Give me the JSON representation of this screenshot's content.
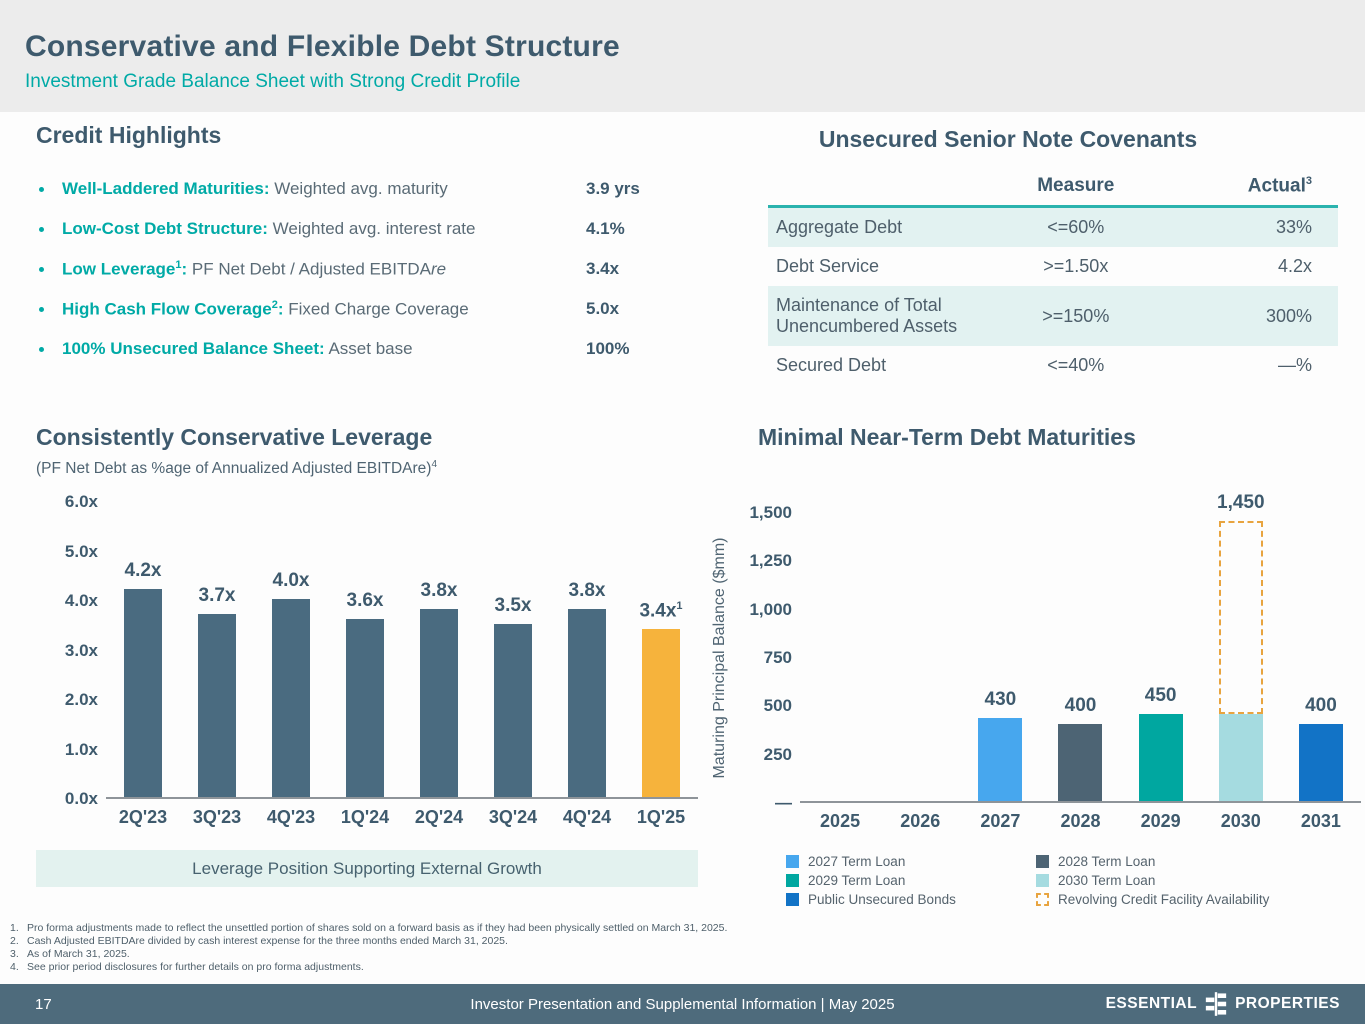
{
  "header": {
    "title": "Conservative and Flexible Debt Structure",
    "subtitle": "Investment Grade Balance Sheet with Strong Credit Profile"
  },
  "credit_highlights": {
    "heading": "Credit Highlights",
    "bullets": [
      {
        "label": "Well-Laddered Maturities",
        "sup": "",
        "rest": " Weighted avg. maturity",
        "rest_italic": "",
        "value": "3.9 yrs"
      },
      {
        "label": "Low-Cost Debt Structure",
        "sup": "",
        "rest": " Weighted avg. interest rate",
        "rest_italic": "",
        "value": "4.1%"
      },
      {
        "label": "Low Leverage",
        "sup": "1",
        "rest": " PF Net Debt / Adjusted EBITDA",
        "rest_italic": "re",
        "value": "3.4x"
      },
      {
        "label": "High Cash Flow Coverage",
        "sup": "2",
        "rest": " Fixed Charge Coverage",
        "rest_italic": "",
        "value": "5.0x"
      },
      {
        "label": "100% Unsecured Balance Sheet",
        "sup": "",
        "rest": " Asset base",
        "rest_italic": "",
        "value": "100%"
      }
    ]
  },
  "covenants": {
    "heading": "Unsecured Senior Note Covenants",
    "columns": {
      "measure": "Measure",
      "actual": "Actual",
      "actual_sup": "3"
    },
    "rows": [
      {
        "name": "Aggregate Debt",
        "measure": "<=60%",
        "actual": "33%",
        "shaded": true
      },
      {
        "name": "Debt Service",
        "measure": ">=1.50x",
        "actual": "4.2x",
        "shaded": false
      },
      {
        "name": "Maintenance of Total Unencumbered Assets",
        "measure": ">=150%",
        "actual": "300%",
        "shaded": true
      },
      {
        "name": "Secured Debt",
        "measure": "<=40%",
        "actual": "—%",
        "shaded": false
      }
    ]
  },
  "chart_data": [
    {
      "name": "leverage",
      "type": "bar",
      "title": "Consistently Conservative Leverage",
      "subtitle": "(PF Net Debt as %age of Annualized Adjusted EBITDAre)",
      "subtitle_sup": "4",
      "ylim": [
        0,
        6
      ],
      "yticks": [
        "6.0x",
        "5.0x",
        "4.0x",
        "3.0x",
        "2.0x",
        "1.0x",
        "0.0x"
      ],
      "categories": [
        "2Q'23",
        "3Q'23",
        "4Q'23",
        "1Q'24",
        "2Q'24",
        "3Q'24",
        "4Q'24",
        "1Q'25"
      ],
      "values": [
        4.2,
        3.7,
        4.0,
        3.6,
        3.8,
        3.5,
        3.8,
        3.4
      ],
      "value_labels": [
        "4.2x",
        "3.7x",
        "4.0x",
        "3.6x",
        "3.8x",
        "3.5x",
        "3.8x",
        "3.4x"
      ],
      "value_label_sups": [
        "",
        "",
        "",
        "",
        "",
        "",
        "",
        "1"
      ],
      "bar_colors": [
        "#4a6b80",
        "#4a6b80",
        "#4a6b80",
        "#4a6b80",
        "#4a6b80",
        "#4a6b80",
        "#4a6b80",
        "#f6b33c"
      ],
      "grid": false,
      "caption": "Leverage Position Supporting External Growth"
    },
    {
      "name": "maturities",
      "type": "bar",
      "title": "Minimal Near-Term Debt Maturities",
      "ylabel": "Maturing Principal Balance ($mm)",
      "ylim": [
        0,
        1500
      ],
      "yticks": [
        "1,500",
        "1,250",
        "1,000",
        "750",
        "500",
        "250",
        "—"
      ],
      "categories": [
        "2025",
        "2026",
        "2027",
        "2028",
        "2029",
        "2030",
        "2031"
      ],
      "values": [
        0,
        0,
        430,
        400,
        450,
        450,
        400
      ],
      "value_labels": [
        "",
        "",
        "430",
        "400",
        "450",
        "",
        "400"
      ],
      "bar_colors": [
        null,
        null,
        "#47a7ee",
        "#4d6474",
        "#00a7a0",
        "#a5dbe0",
        "#1273c6"
      ],
      "grid": false,
      "revolver": {
        "category": "2030",
        "category_index": 5,
        "from": 450,
        "to": 1450,
        "label": "1,450",
        "color": "#e8a43f"
      },
      "legend": [
        {
          "label": "2027 Term Loan",
          "color": "#47a7ee",
          "style": "solid"
        },
        {
          "label": "2029 Term Loan",
          "color": "#00a7a0",
          "style": "solid"
        },
        {
          "label": "Public Unsecured Bonds",
          "color": "#1273c6",
          "style": "solid"
        },
        {
          "label": "2028 Term Loan",
          "color": "#4d6474",
          "style": "solid"
        },
        {
          "label": "2030 Term Loan",
          "color": "#a5dbe0",
          "style": "solid"
        },
        {
          "label": "Revolving Credit Facility Availability",
          "color": "#e8a43f",
          "style": "dashed"
        }
      ],
      "legend_position": "bottom"
    }
  ],
  "footnotes": [
    "Pro forma adjustments made to reflect the unsettled portion of shares sold on a forward basis as if they had been physically settled on March 31, 2025.",
    "Cash Adjusted EBITDAre divided by cash interest expense for the three months ended March 31, 2025.",
    "As of March 31, 2025.",
    "See prior period disclosures for further details on pro forma adjustments."
  ],
  "footer": {
    "page_number": "17",
    "center_text": "Investor Presentation and Supplemental Information | May 2025",
    "brand_left": "ESSENTIAL",
    "brand_right": "PROPERTIES"
  },
  "colors": {
    "accent_teal": "#00aaa6",
    "heading_slate": "#3e5a6d",
    "bar_slate": "#4a6b80",
    "highlight_amber": "#f6b33c",
    "footer_bg": "#4e6b7c",
    "table_stripe": "#e2f2f1"
  }
}
